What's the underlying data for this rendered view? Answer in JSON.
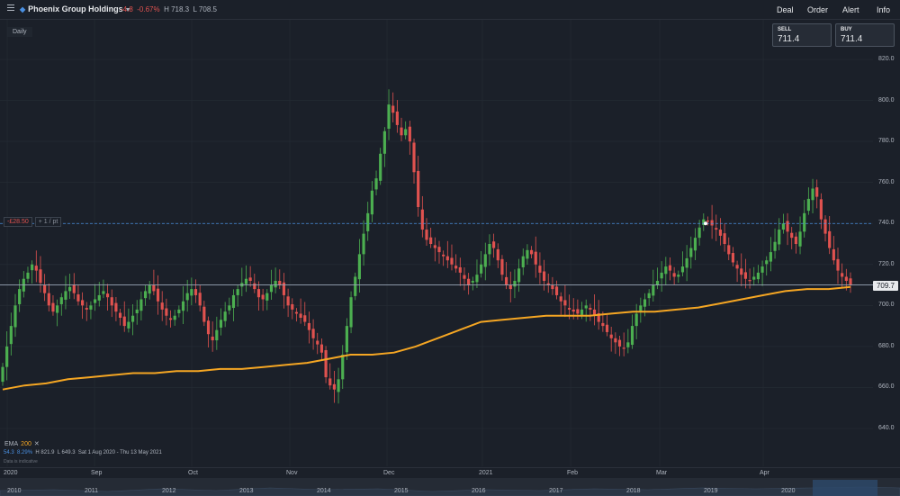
{
  "header": {
    "instrument": "Phoenix Group Holdings",
    "change": "-4.8",
    "change_pct": "-0.67%",
    "high": "H 718.3",
    "low": "L 708.5",
    "nav": [
      "Deal",
      "Order",
      "Alert",
      "Info"
    ]
  },
  "timeframe": "Daily",
  "sell": {
    "label": "SELL",
    "value": "711.4"
  },
  "buy": {
    "label": "BUY",
    "value": "711.4"
  },
  "pnl": {
    "loss": "-£28.50",
    "per": "+ 1 / pt"
  },
  "current_price": "709.7",
  "indicator": {
    "name": "EMA",
    "period": "200",
    "close": "✕"
  },
  "stats": {
    "v1": "54.3",
    "v2": "8.29%",
    "high": "H 821.9",
    "low": "L 649.3",
    "range": "Sat 1 Aug 2020 - Thu 13 May 2021",
    "note": "Data is indicative"
  },
  "navigator_years": [
    "2010",
    "2011",
    "2012",
    "2013",
    "2014",
    "2015",
    "2016",
    "2017",
    "2018",
    "2019",
    "2020"
  ],
  "colors": {
    "up": "#4caf50",
    "down": "#e0524f",
    "ema": "#f5a623",
    "bg": "#1b2029",
    "accent": "#4a90e2"
  },
  "chart_data": {
    "type": "candlestick",
    "title": "Phoenix Group Holdings",
    "ylim": [
      630,
      830
    ],
    "y_ticks": [
      820.0,
      800.0,
      780.0,
      760.0,
      740.0,
      720.0,
      700.0,
      680.0,
      660.0,
      640.0
    ],
    "x_ticks": [
      "2020",
      "Sep",
      "Oct",
      "Nov",
      "Dec",
      "2021",
      "Feb",
      "Mar",
      "Apr"
    ],
    "reference_lines": [
      740.0,
      710.0
    ],
    "ema_label": "EMA 200",
    "close": [
      670,
      680,
      690,
      700,
      708,
      713,
      716,
      720,
      717,
      711,
      706,
      700,
      697,
      700,
      704,
      707,
      709,
      706,
      702,
      700,
      698,
      700,
      703,
      705,
      707,
      704,
      700,
      697,
      694,
      690,
      692,
      695,
      698,
      703,
      707,
      710,
      707,
      702,
      698,
      695,
      693,
      695,
      698,
      702,
      706,
      708,
      705,
      700,
      692,
      686,
      683,
      688,
      693,
      697,
      700,
      705,
      708,
      711,
      713,
      712,
      708,
      704,
      703,
      706,
      710,
      712,
      710,
      705,
      700,
      698,
      696,
      694,
      692,
      688,
      684,
      681,
      677,
      665,
      661,
      659,
      664,
      676,
      690,
      704,
      714,
      725,
      735,
      745,
      756,
      762,
      774,
      785,
      798,
      794,
      788,
      783,
      786,
      780,
      765,
      748,
      737,
      732,
      730,
      728,
      726,
      724,
      722,
      720,
      718,
      716,
      713,
      710,
      712,
      715,
      720,
      725,
      730,
      728,
      722,
      715,
      710,
      708,
      712,
      718,
      724,
      727,
      725,
      720,
      716,
      712,
      710,
      708,
      705,
      702,
      700,
      698,
      697,
      696,
      698,
      700,
      698,
      695,
      692,
      690,
      687,
      684,
      682,
      680,
      679,
      682,
      690,
      696,
      700,
      703,
      706,
      710,
      712,
      716,
      719,
      717,
      714,
      715,
      719,
      723,
      728,
      733,
      738,
      742,
      741,
      739,
      737,
      734,
      730,
      725,
      721,
      718,
      715,
      713,
      712,
      714,
      716,
      719,
      722,
      726,
      731,
      737,
      740,
      736,
      733,
      730,
      736,
      745,
      752,
      757,
      753,
      742,
      735,
      728,
      722,
      717,
      714,
      712,
      710
    ],
    "ema": [
      659,
      661,
      662,
      664,
      665,
      666,
      667,
      667,
      668,
      668,
      669,
      669,
      670,
      671,
      672,
      674,
      676,
      676,
      677,
      680,
      684,
      688,
      692,
      693,
      694,
      695,
      695,
      695,
      696,
      697,
      697,
      698,
      699,
      701,
      703,
      705,
      707,
      708,
      708,
      709
    ]
  }
}
